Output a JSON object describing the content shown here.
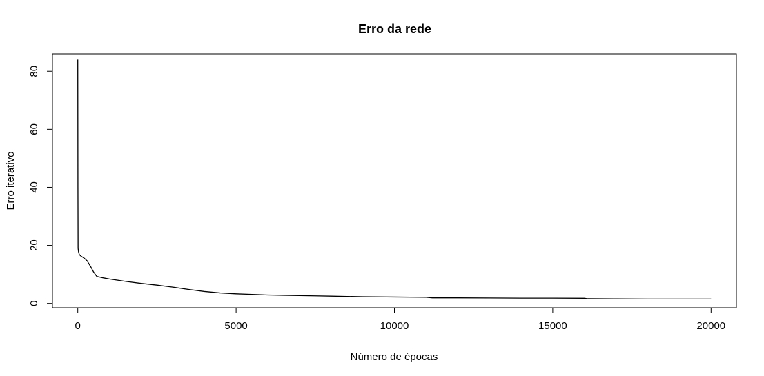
{
  "chart_data": {
    "type": "line",
    "title": "Erro da rede",
    "xlabel": "Número de épocas",
    "ylabel": "Erro iterativo",
    "xlim": [
      -800,
      20800
    ],
    "ylim": [
      -1.5,
      86
    ],
    "x_ticks": [
      0,
      5000,
      10000,
      15000,
      20000
    ],
    "x_tick_labels": [
      "0",
      "5000",
      "10000",
      "15000",
      "20000"
    ],
    "y_ticks": [
      0,
      20,
      40,
      60,
      80
    ],
    "y_tick_labels": [
      "0",
      "20",
      "40",
      "60",
      "80"
    ],
    "grid": false,
    "line_color": "#000000",
    "series": [
      {
        "x": [
          0,
          5,
          10,
          20,
          30,
          50,
          100,
          200,
          300,
          400,
          500,
          600,
          800,
          1000,
          1500,
          2000,
          2500,
          3000,
          3500,
          4000,
          4500,
          5000,
          5500,
          6000,
          6500,
          7000,
          7500,
          8000,
          8500,
          9000,
          10000,
          11000,
          11200,
          12000,
          13000,
          14000,
          15000,
          16000,
          16100,
          17000,
          18000,
          19000,
          20000
        ],
        "y": [
          84,
          40,
          19,
          18,
          17.5,
          16.8,
          16.3,
          15.6,
          14.6,
          12.8,
          10.8,
          9.3,
          8.8,
          8.4,
          7.6,
          6.9,
          6.3,
          5.6,
          4.8,
          4.1,
          3.6,
          3.3,
          3.1,
          2.9,
          2.8,
          2.7,
          2.6,
          2.5,
          2.4,
          2.3,
          2.2,
          2.1,
          1.9,
          1.9,
          1.85,
          1.8,
          1.8,
          1.75,
          1.6,
          1.55,
          1.5,
          1.5,
          1.5
        ]
      }
    ]
  }
}
